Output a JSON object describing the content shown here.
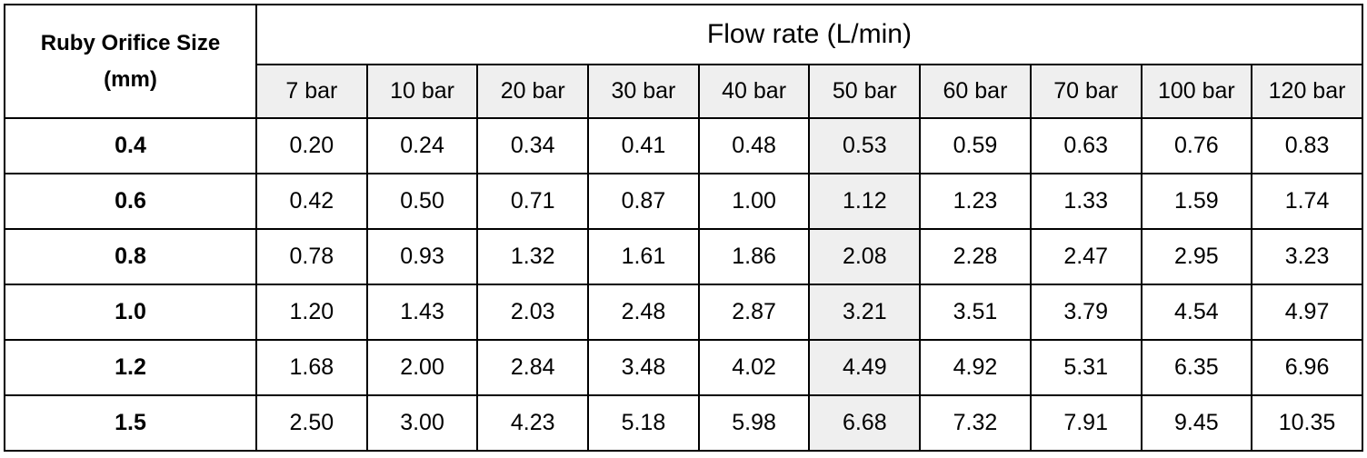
{
  "table": {
    "size_header": [
      "Ruby Orifice Size",
      "(mm)"
    ],
    "flow_header": "Flow rate (L/min)",
    "pressures": [
      "7 bar",
      "10 bar",
      "20 bar",
      "30 bar",
      "40 bar",
      "50 bar",
      "60 bar",
      "70 bar",
      "100 bar",
      "120 bar"
    ],
    "highlight_column": "50 bar",
    "highlight_color": "#efefef",
    "rows": [
      {
        "size": "0.4",
        "values": [
          "0.20",
          "0.24",
          "0.34",
          "0.41",
          "0.48",
          "0.53",
          "0.59",
          "0.63",
          "0.76",
          "0.83"
        ]
      },
      {
        "size": "0.6",
        "values": [
          "0.42",
          "0.50",
          "0.71",
          "0.87",
          "1.00",
          "1.12",
          "1.23",
          "1.33",
          "1.59",
          "1.74"
        ]
      },
      {
        "size": "0.8",
        "values": [
          "0.78",
          "0.93",
          "1.32",
          "1.61",
          "1.86",
          "2.08",
          "2.28",
          "2.47",
          "2.95",
          "3.23"
        ]
      },
      {
        "size": "1.0",
        "values": [
          "1.20",
          "1.43",
          "2.03",
          "2.48",
          "2.87",
          "3.21",
          "3.51",
          "3.79",
          "4.54",
          "4.97"
        ]
      },
      {
        "size": "1.2",
        "values": [
          "1.68",
          "2.00",
          "2.84",
          "3.48",
          "4.02",
          "4.49",
          "4.92",
          "5.31",
          "6.35",
          "6.96"
        ]
      },
      {
        "size": "1.5",
        "values": [
          "2.50",
          "3.00",
          "4.23",
          "5.18",
          "5.98",
          "6.68",
          "7.32",
          "7.91",
          "9.45",
          "10.35"
        ]
      }
    ]
  }
}
